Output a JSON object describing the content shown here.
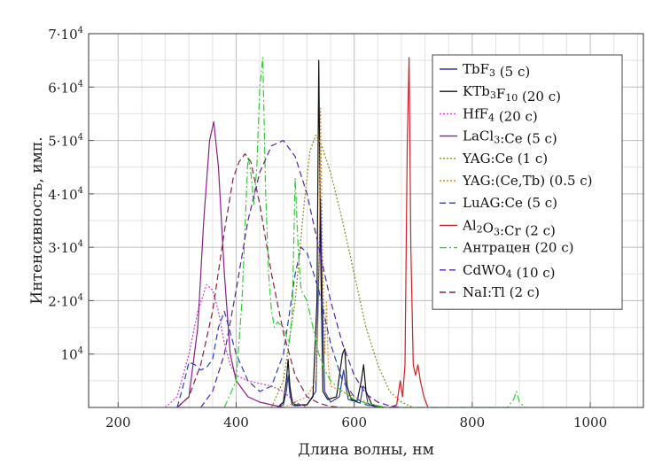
{
  "chart_data": {
    "type": "line",
    "xlabel": "Длина волны, нм",
    "ylabel": "Интенсивность, имп.",
    "xlim": [
      150,
      1090
    ],
    "ylim": [
      0,
      70000
    ],
    "x_ticks": [
      200,
      400,
      600,
      800,
      1000
    ],
    "y_ticks": [
      {
        "value": 10000,
        "mant": "10",
        "exp": "4"
      },
      {
        "value": 20000,
        "mant": "2·10",
        "exp": "4"
      },
      {
        "value": 30000,
        "mant": "3·10",
        "exp": "4"
      },
      {
        "value": 40000,
        "mant": "4·10",
        "exp": "4"
      },
      {
        "value": 50000,
        "mant": "5·10",
        "exp": "4"
      },
      {
        "value": 60000,
        "mant": "6·10",
        "exp": "4"
      },
      {
        "value": 70000,
        "mant": "7·10",
        "exp": "4"
      }
    ],
    "grid": true,
    "legend_position": "top-right",
    "series": [
      {
        "name": "TbF3 (5 c)",
        "legend_parts": [
          {
            "t": "TbF"
          },
          {
            "t": "3",
            "sub": true
          },
          {
            "t": " (5 c)"
          }
        ],
        "color": "#2b3f9e",
        "dash": "",
        "x": [
          470,
          480,
          485,
          488,
          491,
          495,
          500,
          520,
          535,
          540,
          543,
          546,
          550,
          560,
          575,
          582,
          586,
          590,
          600,
          610,
          615,
          619,
          623,
          630,
          650
        ],
        "y": [
          0,
          500,
          3000,
          6000,
          2500,
          500,
          300,
          500,
          3000,
          25000,
          39000,
          20000,
          3000,
          1000,
          2000,
          7000,
          4000,
          1500,
          1200,
          800,
          4000,
          3500,
          800,
          300,
          0
        ]
      },
      {
        "name": "KTb3F10 (20 c)",
        "legend_parts": [
          {
            "t": "KTb"
          },
          {
            "t": "3",
            "sub": true
          },
          {
            "t": "F"
          },
          {
            "t": "10",
            "sub": true
          },
          {
            "t": " (20 c)"
          }
        ],
        "color": "#111111",
        "dash": "",
        "x": [
          470,
          480,
          485,
          488,
          491,
          495,
          500,
          520,
          530,
          537,
          540,
          543,
          547,
          555,
          570,
          580,
          584,
          588,
          595,
          605,
          612,
          616,
          620,
          630,
          650
        ],
        "y": [
          0,
          1000,
          5000,
          9000,
          4000,
          1000,
          500,
          500,
          2000,
          20000,
          65000,
          30000,
          3000,
          1500,
          2000,
          10000,
          11000,
          4000,
          1500,
          1200,
          5000,
          8000,
          3000,
          500,
          0
        ]
      },
      {
        "name": "HfF4 (20 c)",
        "legend_parts": [
          {
            "t": "HfF"
          },
          {
            "t": "4",
            "sub": true
          },
          {
            "t": " (20 c)"
          }
        ],
        "color": "#d13ad1",
        "dash": "2,2",
        "x": [
          280,
          300,
          320,
          335,
          350,
          360,
          370,
          380,
          390,
          400,
          420,
          440,
          460,
          480,
          500,
          520
        ],
        "y": [
          0,
          2000,
          10000,
          18000,
          23000,
          22000,
          18000,
          12000,
          8000,
          6000,
          5000,
          4500,
          4000,
          3000,
          1000,
          0
        ]
      },
      {
        "name": "LaCl3:Ce (5 c)",
        "legend_parts": [
          {
            "t": "LaCl"
          },
          {
            "t": "3",
            "sub": true
          },
          {
            "t": ":Ce (5 c)"
          }
        ],
        "color": "#8a1e8a",
        "dash": "",
        "x": [
          300,
          320,
          335,
          345,
          355,
          362,
          370,
          380,
          390,
          400,
          420,
          440,
          460,
          480
        ],
        "y": [
          0,
          2000,
          15000,
          35000,
          50000,
          53500,
          45000,
          25000,
          10000,
          5000,
          2000,
          1000,
          500,
          0
        ]
      },
      {
        "name": "YAG:Ce (1 c)",
        "legend_parts": [
          {
            "t": "YAG:Ce (1 c)"
          }
        ],
        "color": "#8a8a20",
        "dash": "2,2",
        "x": [
          460,
          480,
          500,
          515,
          525,
          535,
          545,
          560,
          580,
          600,
          620,
          640,
          660,
          680,
          700
        ],
        "y": [
          0,
          5000,
          20000,
          38000,
          48000,
          51000,
          49000,
          44000,
          35000,
          25000,
          15000,
          8000,
          3000,
          1000,
          0
        ]
      },
      {
        "name": "YAG:(Ce,Tb) (0.5 c)",
        "legend_parts": [
          {
            "t": "YAG:(Ce,Tb) (0.5 c)"
          }
        ],
        "color": "#e08a20",
        "dash": "2,2",
        "x": [
          480,
          520,
          535,
          540,
          543,
          546,
          550,
          553,
          556,
          560,
          580,
          600,
          620,
          650
        ],
        "y": [
          0,
          2000,
          5000,
          20000,
          56000,
          30000,
          10000,
          20000,
          8000,
          4000,
          3000,
          2000,
          1000,
          0
        ]
      },
      {
        "name": "LuAG:Ce (5 c)",
        "legend_parts": [
          {
            "t": "LuAG:Ce (5 c)"
          }
        ],
        "color": "#2b3fc0",
        "dash": "7,4",
        "x": [
          300,
          310,
          320,
          330,
          340,
          350,
          360,
          370,
          380,
          400,
          420,
          440,
          460,
          480,
          500,
          510,
          520,
          540,
          560,
          580,
          600,
          620,
          640
        ],
        "y": [
          0,
          4000,
          8500,
          8000,
          7000,
          7500,
          9000,
          15000,
          18000,
          10000,
          5000,
          3000,
          4000,
          10000,
          25000,
          30000,
          29000,
          22000,
          12000,
          5000,
          2000,
          500,
          0
        ]
      },
      {
        "name": "Al2O3:Cr (2 c)",
        "legend_parts": [
          {
            "t": "Al"
          },
          {
            "t": "2",
            "sub": true
          },
          {
            "t": "O"
          },
          {
            "t": "3",
            "sub": true
          },
          {
            "t": ":Cr (2 c)"
          }
        ],
        "color": "#cc2222",
        "dash": "",
        "x": [
          660,
          672,
          678,
          682,
          686,
          690,
          693,
          696,
          700,
          704,
          708,
          712,
          718,
          725
        ],
        "y": [
          0,
          500,
          5000,
          2000,
          8000,
          50000,
          65500,
          30000,
          8000,
          6000,
          8000,
          5000,
          2000,
          0
        ]
      },
      {
        "name": "Антрацен (20 c)",
        "legend_parts": [
          {
            "t": "Антрацен (20 c)"
          }
        ],
        "color": "#33cc33",
        "dash": "8,3,2,3",
        "x": [
          380,
          400,
          410,
          420,
          425,
          430,
          435,
          440,
          445,
          450,
          455,
          460,
          465,
          470,
          480,
          490,
          495,
          500,
          505,
          510,
          520,
          530,
          540,
          550,
          560,
          580,
          600,
          620,
          640,
          660,
          860,
          870,
          875,
          880,
          890
        ],
        "y": [
          0,
          5000,
          20000,
          47000,
          44000,
          38000,
          45000,
          60000,
          65500,
          40000,
          25000,
          18000,
          15000,
          16000,
          15000,
          12000,
          18000,
          43000,
          30000,
          22000,
          20000,
          15000,
          10000,
          7000,
          5000,
          3000,
          1500,
          800,
          300,
          0,
          0,
          1500,
          3000,
          1000,
          0
        ]
      },
      {
        "name": "CdWO4 (10 c)",
        "legend_parts": [
          {
            "t": "CdWO"
          },
          {
            "t": "4",
            "sub": true
          },
          {
            "t": " (10 c)"
          }
        ],
        "color": "#5a20a8",
        "dash": "7,4",
        "x": [
          340,
          360,
          380,
          400,
          420,
          440,
          460,
          480,
          500,
          520,
          540,
          560,
          580,
          600,
          620,
          640,
          660,
          680
        ],
        "y": [
          0,
          3000,
          10000,
          22000,
          35000,
          44000,
          49000,
          50000,
          47000,
          40000,
          30000,
          20000,
          12000,
          6000,
          2500,
          1000,
          300,
          0
        ]
      },
      {
        "name": "NaI:Tl (2 c)",
        "legend_parts": [
          {
            "t": "NaI:Tl (2 c)"
          }
        ],
        "color": "#8a2040",
        "dash": "7,4",
        "x": [
          300,
          320,
          340,
          360,
          380,
          395,
          405,
          415,
          425,
          440,
          460,
          480,
          500,
          520,
          540,
          560,
          580
        ],
        "y": [
          0,
          2000,
          8000,
          18000,
          33000,
          43000,
          46000,
          47500,
          46000,
          38000,
          25000,
          14000,
          6000,
          2000,
          800,
          200,
          0
        ]
      }
    ]
  }
}
